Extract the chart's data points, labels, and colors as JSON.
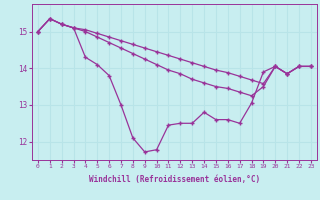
{
  "background_color": "#c8eef0",
  "line_color": "#993399",
  "grid_color": "#b8e4e8",
  "xlabel": "Windchill (Refroidissement éolien,°C)",
  "xlabel_color": "#993399",
  "tick_color": "#993399",
  "ylim": [
    11.5,
    15.75
  ],
  "yticks": [
    12,
    13,
    14,
    15
  ],
  "xlim": [
    -0.5,
    23.5
  ],
  "xticks": [
    0,
    1,
    2,
    3,
    4,
    5,
    6,
    7,
    8,
    9,
    10,
    11,
    12,
    13,
    14,
    15,
    16,
    17,
    18,
    19,
    20,
    21,
    22,
    23
  ],
  "series1": [
    15.0,
    15.35,
    15.2,
    15.1,
    14.3,
    14.1,
    13.8,
    13.0,
    12.1,
    11.72,
    11.78,
    12.45,
    12.5,
    12.5,
    12.8,
    12.6,
    12.6,
    12.5,
    13.05,
    13.9,
    14.05,
    13.85,
    14.05,
    14.05
  ],
  "series2": [
    15.0,
    15.35,
    15.2,
    15.1,
    15.0,
    14.85,
    14.7,
    14.55,
    14.4,
    14.25,
    14.1,
    13.95,
    13.85,
    13.7,
    13.6,
    13.5,
    13.45,
    13.35,
    13.25,
    13.5,
    14.05,
    13.85,
    14.05,
    14.05
  ],
  "series3": [
    15.0,
    15.35,
    15.2,
    15.1,
    15.05,
    14.95,
    14.85,
    14.75,
    14.65,
    14.55,
    14.45,
    14.35,
    14.25,
    14.15,
    14.05,
    13.95,
    13.88,
    13.78,
    13.68,
    13.58,
    14.05,
    13.85,
    14.05,
    14.05
  ]
}
